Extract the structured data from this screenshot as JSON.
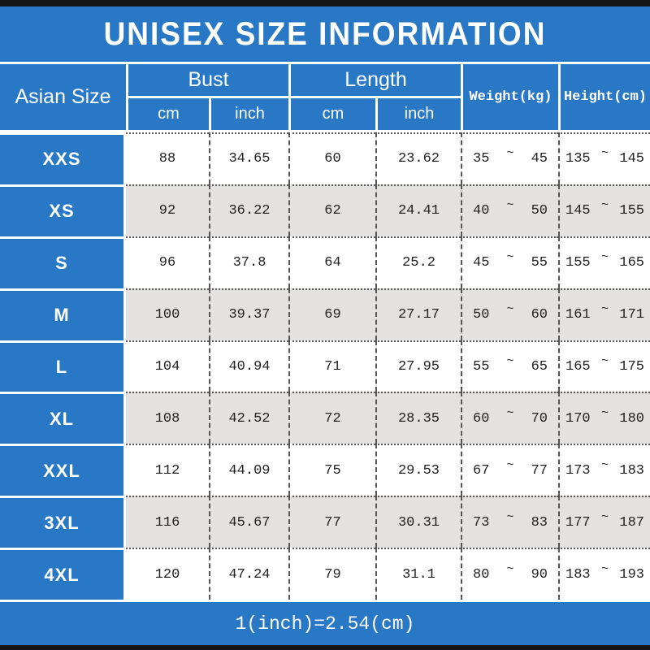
{
  "title": "UNISEX SIZE INFORMATION",
  "tilde": "~",
  "footer": {
    "note": "1(inch)=2.54(cm)"
  },
  "colors": {
    "blue": "#2878C6",
    "alt_row": "#E3E2E0",
    "bar_black": "#141414",
    "white": "#FFFFFF",
    "text_dark": "#222222"
  },
  "header": {
    "asian_size": "Asian Size",
    "bust": "Bust",
    "length": "Length",
    "bust_cm": "cm",
    "bust_inch": "inch",
    "length_cm": "cm",
    "length_inch": "inch",
    "weight": "Weight(kg)",
    "height": "Height(cm)"
  },
  "chart_data": {
    "type": "table",
    "title": "UNISEX SIZE INFORMATION",
    "columns": [
      "Asian Size",
      "Bust cm",
      "Bust inch",
      "Length cm",
      "Length inch",
      "Weight(kg)",
      "Height(cm)"
    ],
    "footnote": "1(inch)=2.54(cm)",
    "rows": [
      {
        "size": "XXS",
        "bust_cm": "88",
        "bust_inch": "34.65",
        "length_cm": "60",
        "length_inch": "23.62",
        "weight_min": "35",
        "weight_max": "45",
        "height_min": "135",
        "height_max": "145"
      },
      {
        "size": "XS",
        "bust_cm": "92",
        "bust_inch": "36.22",
        "length_cm": "62",
        "length_inch": "24.41",
        "weight_min": "40",
        "weight_max": "50",
        "height_min": "145",
        "height_max": "155"
      },
      {
        "size": "S",
        "bust_cm": "96",
        "bust_inch": "37.8",
        "length_cm": "64",
        "length_inch": "25.2",
        "weight_min": "45",
        "weight_max": "55",
        "height_min": "155",
        "height_max": "165"
      },
      {
        "size": "M",
        "bust_cm": "100",
        "bust_inch": "39.37",
        "length_cm": "69",
        "length_inch": "27.17",
        "weight_min": "50",
        "weight_max": "60",
        "height_min": "161",
        "height_max": "171"
      },
      {
        "size": "L",
        "bust_cm": "104",
        "bust_inch": "40.94",
        "length_cm": "71",
        "length_inch": "27.95",
        "weight_min": "55",
        "weight_max": "65",
        "height_min": "165",
        "height_max": "175"
      },
      {
        "size": "XL",
        "bust_cm": "108",
        "bust_inch": "42.52",
        "length_cm": "72",
        "length_inch": "28.35",
        "weight_min": "60",
        "weight_max": "70",
        "height_min": "170",
        "height_max": "180"
      },
      {
        "size": "XXL",
        "bust_cm": "112",
        "bust_inch": "44.09",
        "length_cm": "75",
        "length_inch": "29.53",
        "weight_min": "67",
        "weight_max": "77",
        "height_min": "173",
        "height_max": "183"
      },
      {
        "size": "3XL",
        "bust_cm": "116",
        "bust_inch": "45.67",
        "length_cm": "77",
        "length_inch": "30.31",
        "weight_min": "73",
        "weight_max": "83",
        "height_min": "177",
        "height_max": "187"
      },
      {
        "size": "4XL",
        "bust_cm": "120",
        "bust_inch": "47.24",
        "length_cm": "79",
        "length_inch": "31.1",
        "weight_min": "80",
        "weight_max": "90",
        "height_min": "183",
        "height_max": "193"
      }
    ]
  }
}
